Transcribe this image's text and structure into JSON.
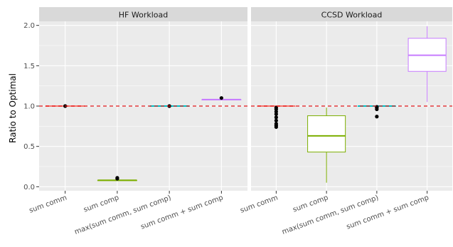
{
  "chart_data": {
    "type": "boxplot",
    "ylabel": "Ratio to Optimal",
    "ylim": [
      -0.05,
      2.05
    ],
    "yticks": [
      0.0,
      0.5,
      1.0,
      1.5,
      2.0
    ],
    "ytick_labels": [
      "0.0",
      "0.5",
      "1.0",
      "1.5",
      "2.0"
    ],
    "reference_line": {
      "y": 1.0,
      "color": "#e41a1c",
      "style": "dashed"
    },
    "categories": [
      "sum comm",
      "sum comp",
      "max(sum comm, sum comp)",
      "sum comm + sum comp"
    ],
    "colors": [
      "#f8766d",
      "#7cae00",
      "#00bfc4",
      "#c77cff"
    ],
    "panels": [
      {
        "title": "HF Workload",
        "boxes": [
          {
            "category": "sum comm",
            "min": 1.0,
            "q1": 1.0,
            "median": 1.0,
            "q3": 1.0,
            "max": 1.0,
            "outliers": [
              1.0
            ]
          },
          {
            "category": "sum comp",
            "min": 0.08,
            "q1": 0.08,
            "median": 0.08,
            "q3": 0.08,
            "max": 0.08,
            "outliers": [
              0.1,
              0.11
            ]
          },
          {
            "category": "max(sum comm, sum comp)",
            "min": 1.0,
            "q1": 1.0,
            "median": 1.0,
            "q3": 1.0,
            "max": 1.0,
            "outliers": [
              1.0
            ]
          },
          {
            "category": "sum comm + sum comp",
            "min": 1.08,
            "q1": 1.08,
            "median": 1.08,
            "q3": 1.08,
            "max": 1.08,
            "outliers": [
              1.1
            ]
          }
        ]
      },
      {
        "title": "CCSD Workload",
        "boxes": [
          {
            "category": "sum comm",
            "min": 1.0,
            "q1": 1.0,
            "median": 1.0,
            "q3": 1.0,
            "max": 1.0,
            "outliers": [
              0.74,
              0.76,
              0.78,
              0.82,
              0.86,
              0.9,
              0.93,
              0.96,
              0.98
            ]
          },
          {
            "category": "sum comp",
            "min": 0.05,
            "q1": 0.43,
            "median": 0.63,
            "q3": 0.88,
            "max": 0.98,
            "outliers": []
          },
          {
            "category": "max(sum comm, sum comp)",
            "min": 1.0,
            "q1": 1.0,
            "median": 1.0,
            "q3": 1.0,
            "max": 1.0,
            "outliers": [
              0.87,
              0.96,
              0.98,
              0.99
            ]
          },
          {
            "category": "sum comm + sum comp",
            "min": 1.05,
            "q1": 1.43,
            "median": 1.63,
            "q3": 1.84,
            "max": 1.99,
            "outliers": []
          }
        ]
      }
    ]
  }
}
